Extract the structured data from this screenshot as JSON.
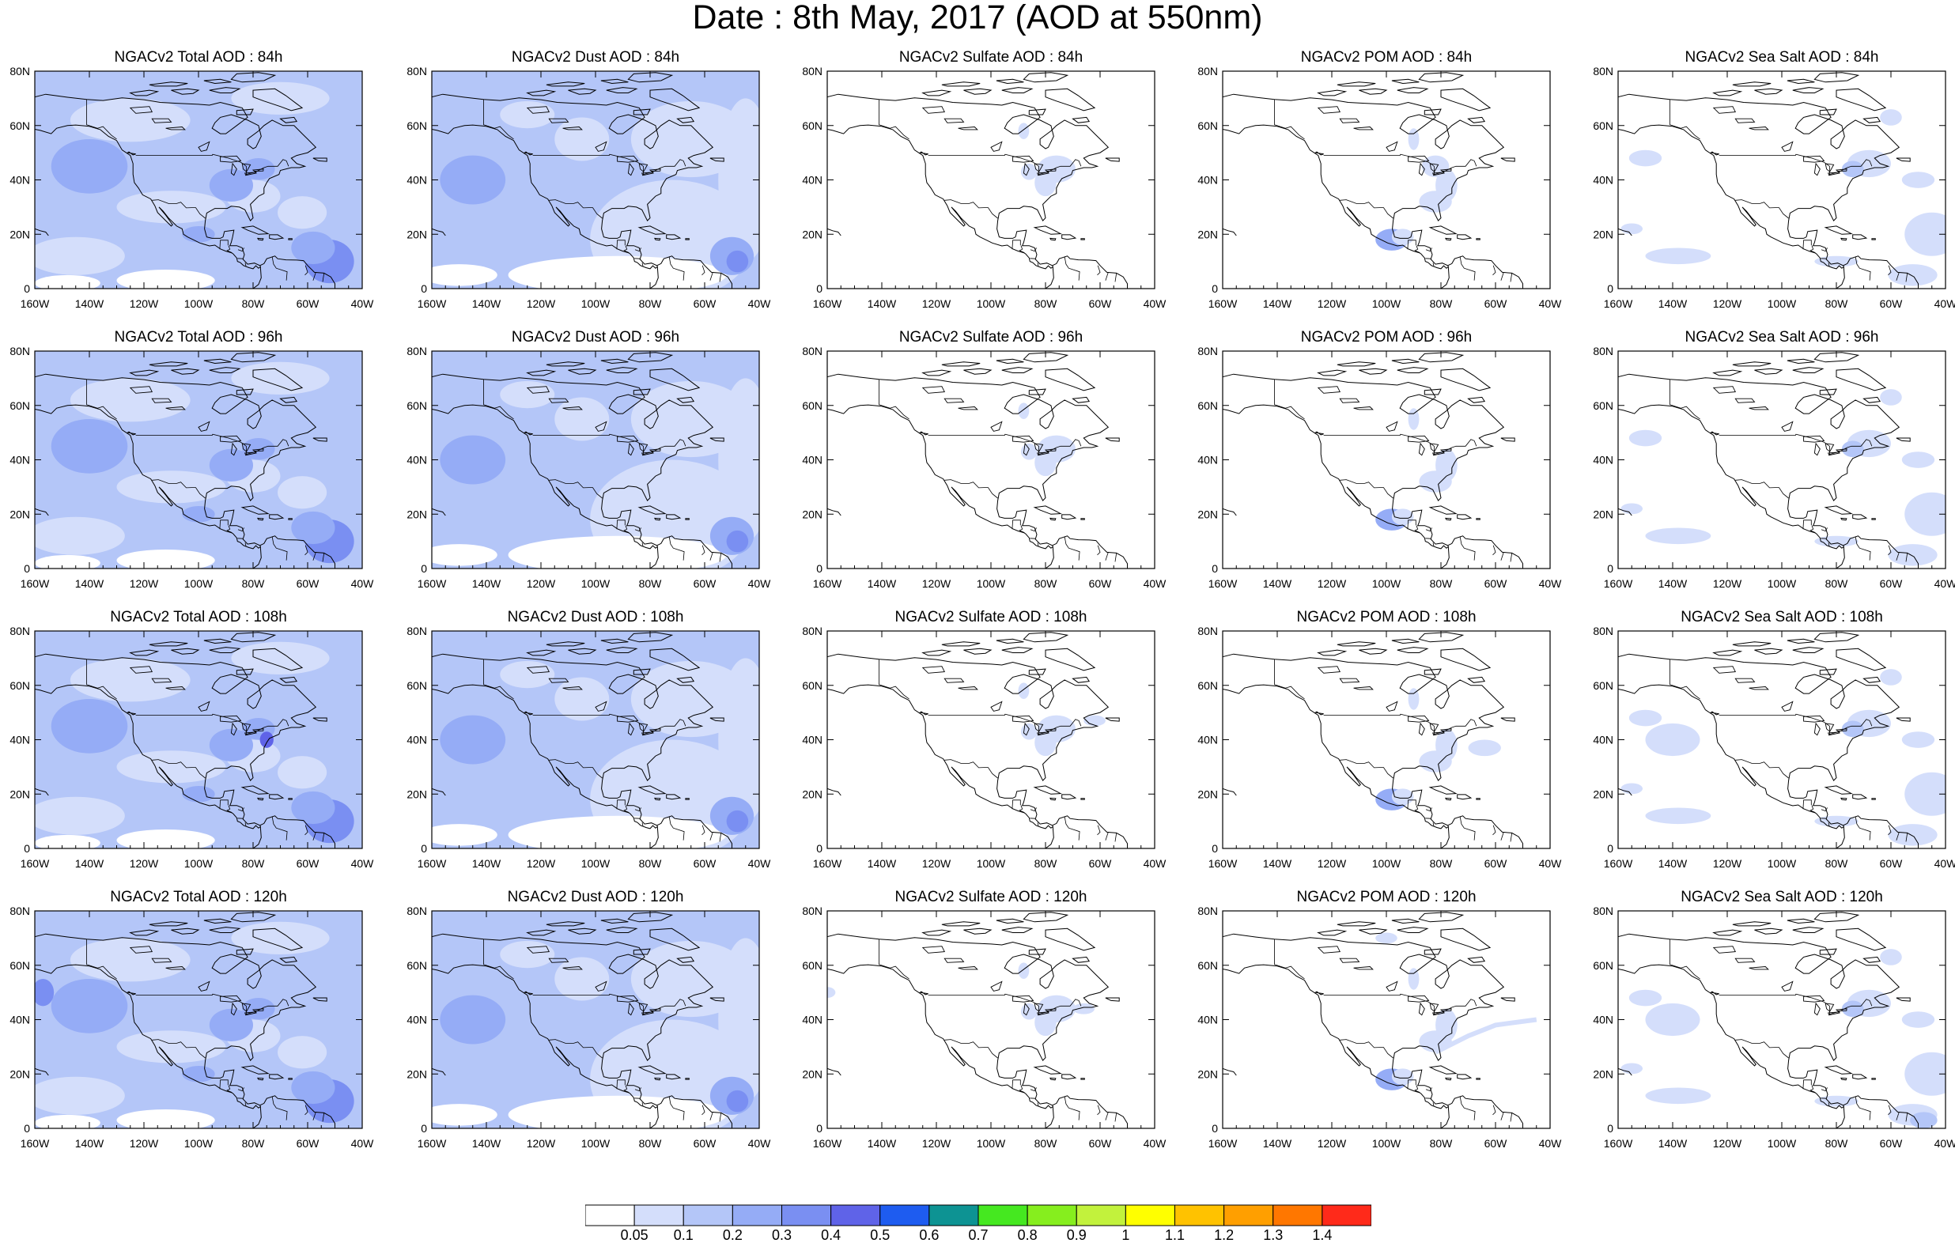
{
  "title": "Date : 8th May, 2017 (AOD at 550nm)",
  "map": {
    "lon_range": [
      -160,
      -40
    ],
    "lat_range": [
      0,
      80
    ],
    "x_ticks": [
      "160W",
      "140W",
      "120W",
      "100W",
      "80W",
      "60W",
      "40W"
    ],
    "y_ticks": [
      "0",
      "20N",
      "40N",
      "60N",
      "80N"
    ]
  },
  "rows": [
    {
      "hour": "84h",
      "titles": [
        "NGACv2 Total AOD : 84h",
        "NGACv2 Dust AOD : 84h",
        "NGACv2 Sulfate AOD : 84h",
        "NGACv2 POM AOD : 84h",
        "NGACv2 Sea Salt AOD : 84h"
      ]
    },
    {
      "hour": "96h",
      "titles": [
        "NGACv2 Total AOD : 96h",
        "NGACv2 Dust AOD : 96h",
        "NGACv2 Sulfate AOD : 96h",
        "NGACv2 POM AOD : 96h",
        "NGACv2 Sea Salt AOD : 96h"
      ]
    },
    {
      "hour": "108h",
      "titles": [
        "NGACv2 Total AOD : 108h",
        "NGACv2 Dust AOD : 108h",
        "NGACv2 Sulfate AOD : 108h",
        "NGACv2 POM AOD : 108h",
        "NGACv2 Sea Salt AOD : 108h"
      ]
    },
    {
      "hour": "120h",
      "titles": [
        "NGACv2 Total AOD : 120h",
        "NGACv2 Dust AOD : 120h",
        "NGACv2 Sulfate AOD : 120h",
        "NGACv2 POM AOD : 120h",
        "NGACv2 Sea Salt  AOD : 120h"
      ]
    }
  ],
  "colorbar": {
    "colors": [
      "#ffffff",
      "#d4defb",
      "#b4c6f8",
      "#95acf6",
      "#7a8ff2",
      "#5f63e8",
      "#1e5cf0",
      "#0d9393",
      "#45e820",
      "#86ee1e",
      "#c2f23c",
      "#ffff00",
      "#ffc200",
      "#ff9f00",
      "#ff7700",
      "#ff2a1a"
    ],
    "labels": [
      "0.05",
      "0.1",
      "0.2",
      "0.3",
      "0.4",
      "0.5",
      "0.6",
      "0.7",
      "0.8",
      "0.9",
      "1",
      "1.1",
      "1.2",
      "1.3",
      "1.4"
    ]
  }
}
